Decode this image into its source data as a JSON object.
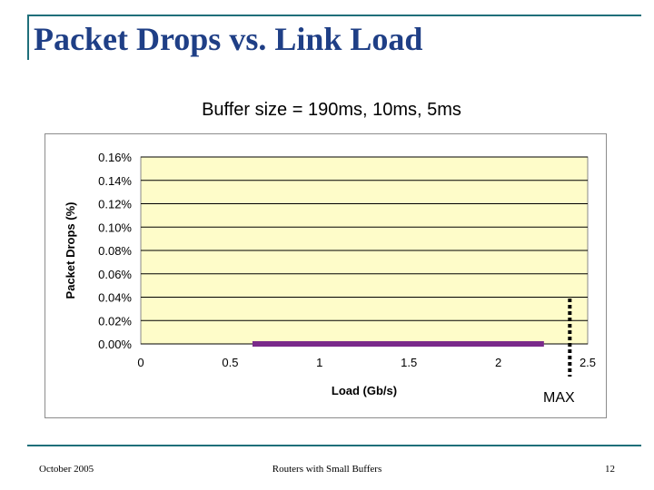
{
  "slide": {
    "title": "Packet Drops vs. Link Load",
    "subtitle": "Buffer size = 190ms, 10ms, 5ms",
    "max_label": "MAX"
  },
  "footer": {
    "date": "October 2005",
    "center": "Routers with Small Buffers",
    "page": "12"
  },
  "colors": {
    "frame": "#1f6f7a",
    "title": "#1f3f86",
    "plot_bg": "#fefcc9",
    "series": "#7a2a8a",
    "max_line": "#000000"
  },
  "chart_data": {
    "type": "scatter",
    "title": "",
    "xlabel": "Load (Gb/s)",
    "ylabel": "Packet Drops (%)",
    "xlim": [
      0,
      2.5
    ],
    "ylim": [
      0,
      0.0016
    ],
    "x_ticks": [
      "0",
      "0.5",
      "1",
      "1.5",
      "2",
      "2.5"
    ],
    "x_tick_values": [
      0,
      0.5,
      1,
      1.5,
      2,
      2.5
    ],
    "y_ticks": [
      "0.00%",
      "0.02%",
      "0.04%",
      "0.06%",
      "0.08%",
      "0.10%",
      "0.12%",
      "0.14%",
      "0.16%"
    ],
    "y_tick_values": [
      0,
      0.0002,
      0.0004,
      0.0006,
      0.0008,
      0.001,
      0.0012,
      0.0014,
      0.0016
    ],
    "grid": "horizontal",
    "x_range": [
      0.64,
      2.24
    ],
    "y_value": 0,
    "max_load": 2.4
  }
}
